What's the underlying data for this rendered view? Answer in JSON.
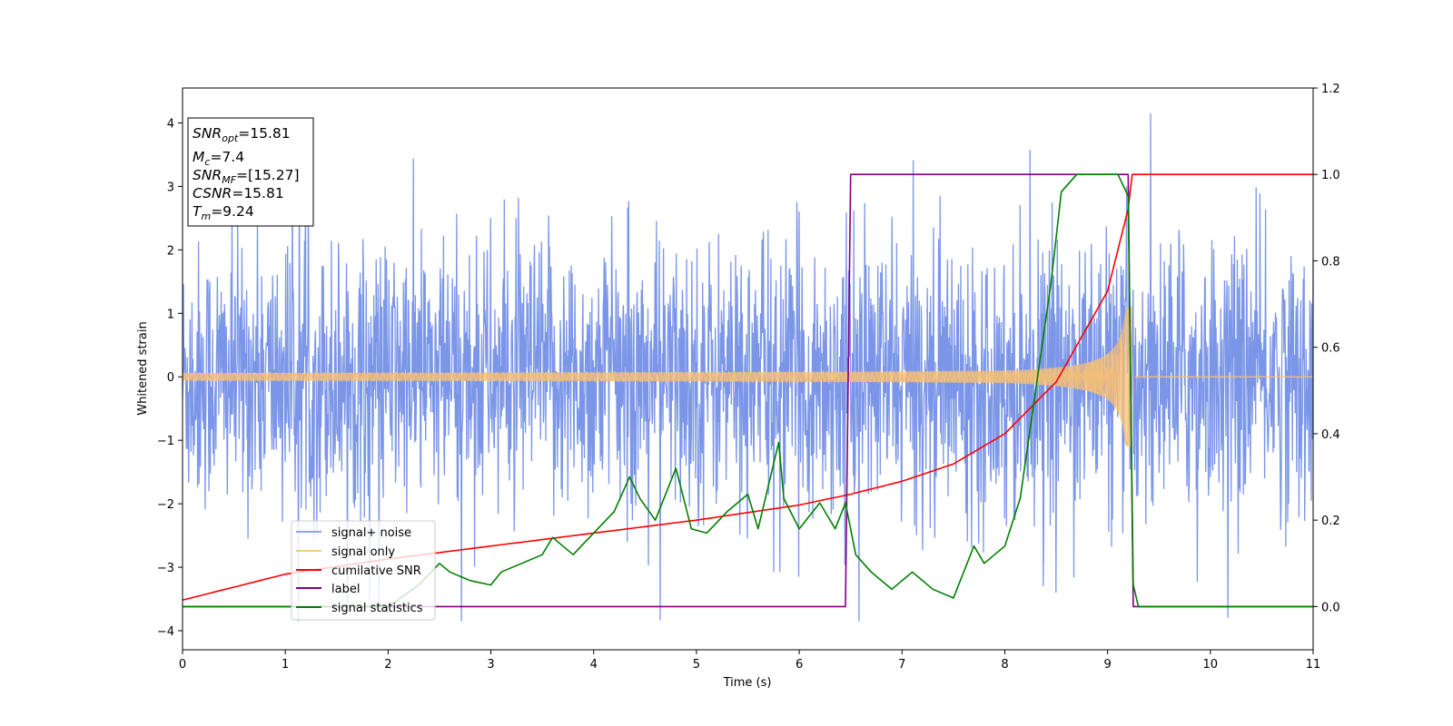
{
  "chart_data": {
    "type": "line",
    "title": "",
    "xlabel": "Time (s)",
    "ylabel": "Whitened strain",
    "xlim": [
      0,
      11
    ],
    "ylim": [
      -4.3,
      4.55
    ],
    "y2lim": [
      -0.1,
      1.2
    ],
    "x_ticks": [
      "0",
      "1",
      "2",
      "3",
      "4",
      "5",
      "6",
      "7",
      "8",
      "9",
      "10",
      "11"
    ],
    "y_ticks": [
      "−4",
      "−3",
      "−2",
      "−1",
      "0",
      "1",
      "2",
      "3",
      "4"
    ],
    "y2_ticks": [
      "0.0",
      "0.2",
      "0.4",
      "0.6",
      "0.8",
      "1.0",
      "1.2"
    ],
    "grid": false,
    "legend_placement": "lower-left",
    "info_box": {
      "snr_opt": {
        "base": "SNR",
        "sub": "opt",
        "value": "=15.81"
      },
      "mc": {
        "base": "M",
        "sub": "c",
        "value": "=7.4"
      },
      "snr_mf": {
        "base": "SNR",
        "sub": "MF",
        "value": "=[15.27]"
      },
      "csnr": {
        "base": "CSNR",
        "value": "=15.81"
      },
      "tm": {
        "base": "T",
        "sub": "m",
        "value": "=9.24"
      }
    },
    "series": [
      {
        "name": "signal+ noise",
        "axis": "left",
        "color": "#7b96e8",
        "kind": "noise",
        "typical_amplitude": 1.0,
        "peak_range": [
          -3.85,
          4.15
        ]
      },
      {
        "name": "signal only",
        "axis": "left",
        "color": "#f6bf75",
        "kind": "chirp",
        "start_amplitude": 0.06,
        "end_amplitude": 1.1,
        "merger_time": 9.24
      },
      {
        "name": "cumilative SNR",
        "axis": "right",
        "color": "#ff0000",
        "x": [
          0,
          1,
          2,
          3,
          4,
          5,
          6,
          6.5,
          7,
          7.5,
          8,
          8.5,
          9,
          9.2,
          9.24,
          11
        ],
        "y": [
          0.015,
          0.075,
          0.11,
          0.14,
          0.17,
          0.2,
          0.235,
          0.26,
          0.29,
          0.33,
          0.4,
          0.52,
          0.73,
          0.92,
          1.0,
          1.0
        ]
      },
      {
        "name": "label",
        "axis": "right",
        "color": "#800080",
        "x": [
          0,
          6.45,
          6.5,
          9.2,
          9.25,
          11
        ],
        "y": [
          0,
          0,
          1,
          1,
          0,
          0
        ]
      },
      {
        "name": "signal statistics",
        "axis": "right",
        "color": "#008000",
        "x": [
          0,
          2.0,
          2.3,
          2.5,
          2.6,
          2.8,
          3.0,
          3.1,
          3.3,
          3.5,
          3.6,
          3.8,
          4.0,
          4.2,
          4.35,
          4.45,
          4.6,
          4.8,
          4.95,
          5.1,
          5.3,
          5.5,
          5.6,
          5.8,
          5.85,
          6.0,
          6.2,
          6.35,
          6.45,
          6.55,
          6.7,
          6.9,
          7.1,
          7.3,
          7.5,
          7.7,
          7.8,
          8.0,
          8.15,
          8.3,
          8.45,
          8.55,
          8.7,
          8.9,
          9.1,
          9.2,
          9.25,
          9.3,
          11
        ],
        "y": [
          0,
          0.0,
          0.05,
          0.1,
          0.08,
          0.06,
          0.05,
          0.08,
          0.1,
          0.12,
          0.16,
          0.12,
          0.17,
          0.22,
          0.3,
          0.25,
          0.2,
          0.32,
          0.18,
          0.17,
          0.22,
          0.26,
          0.18,
          0.38,
          0.25,
          0.18,
          0.24,
          0.18,
          0.24,
          0.12,
          0.08,
          0.04,
          0.08,
          0.04,
          0.02,
          0.14,
          0.1,
          0.14,
          0.25,
          0.5,
          0.75,
          0.96,
          1.0,
          1.0,
          1.0,
          0.95,
          0.05,
          0.0,
          0.0
        ]
      }
    ]
  }
}
